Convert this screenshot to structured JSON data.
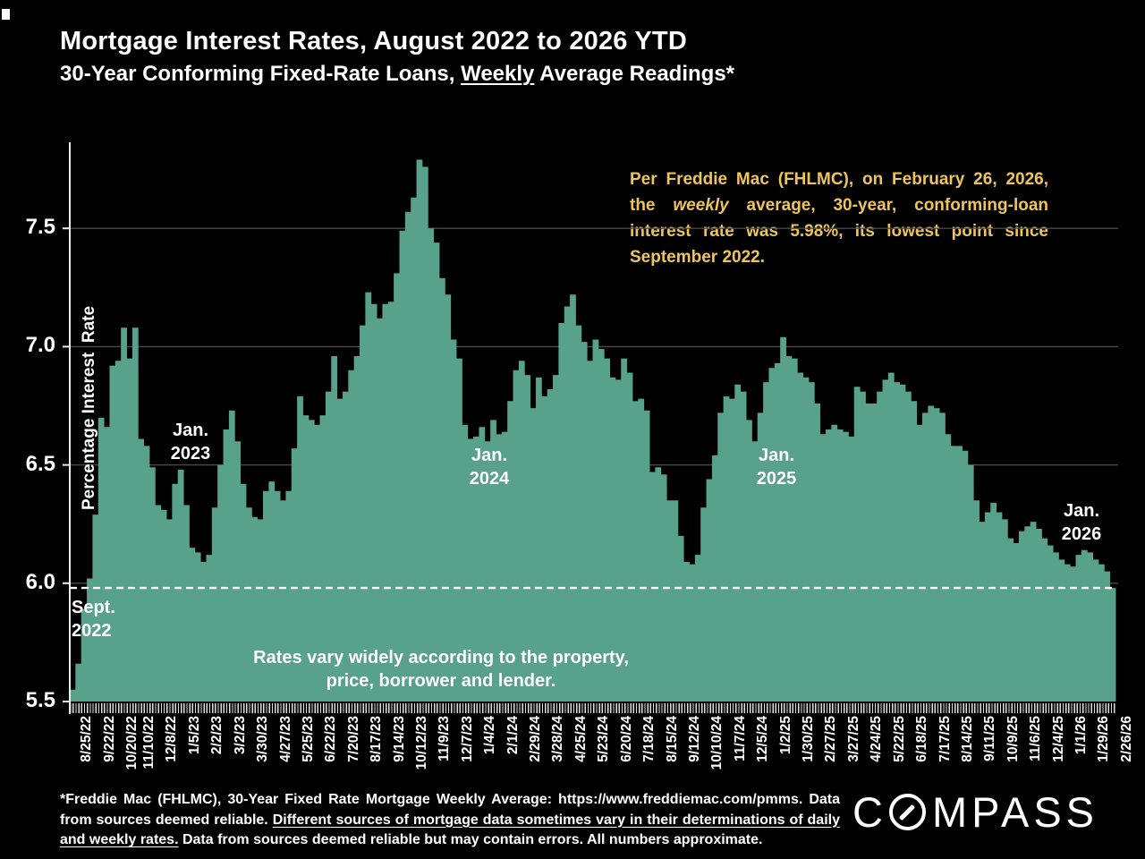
{
  "title": "Mortgage Interest Rates, August 2022 to 2026 YTD",
  "subtitle": {
    "pre": "30-Year Conforming Fixed-Rate Loans, ",
    "underlined": "Weekly",
    "post": " Average Readings*"
  },
  "annotation": {
    "pre": "Per Freddie Mac (FHLMC), on February 26, 2026, the ",
    "italic": "weekly",
    "post": " average, 30-year, conforming-loan interest rate was 5.98%, its lowest point since September 2022."
  },
  "chart_labels": {
    "sept_2022": "Sept.\n2022",
    "jan_2023": "Jan.\n2023",
    "jan_2024": "Jan.\n2024",
    "jan_2025": "Jan.\n2025",
    "jan_2026": "Jan.\n2026",
    "note": "Rates vary widely according to the property,\nprice, borrower and lender."
  },
  "footer": {
    "part1": "*Freddie Mac (FHLMC), 30-Year Fixed Rate Mortgage Weekly Average:  https://www.freddiemac.com/pmms. Data from sources deemed reliable. ",
    "underlined": "Different sources of mortgage data sometimes vary in their determinations of daily and weekly rates.",
    "part2": " Data from sources deemed reliable but may contain errors. All numbers approximate."
  },
  "logo": {
    "pre_o": "C",
    "post_o": "MPASS"
  },
  "colors": {
    "background": "#000000",
    "bar": "#58A18B",
    "annotation_text": "#EDC55C",
    "gridline": "#4A4A4A",
    "axis": "#EDEDED",
    "reference_line": "#FFFFFF"
  },
  "chart_data": {
    "type": "bar",
    "title": "Mortgage Interest Rates, August 2022 to 2026 YTD",
    "subtitle": "30-Year Conforming Fixed-Rate Loans, Weekly Average Readings*",
    "xlabel": "",
    "ylabel": "Percentage Interest  Rate",
    "ylim": [
      5.5,
      7.9
    ],
    "yticks": [
      5.5,
      6.0,
      6.5,
      7.0,
      7.5
    ],
    "grid": "horizontal",
    "legend": "none",
    "reference_line_value": 5.98,
    "x_tick_labels": [
      "8/25/22",
      "9/22/22",
      "10/20/22",
      "11/10/22",
      "12/8/22",
      "1/5/23",
      "2/2/23",
      "3/2/23",
      "3/30/23",
      "4/27/23",
      "5/25/23",
      "6/22/23",
      "7/20/23",
      "8/17/23",
      "9/14/23",
      "10/12/23",
      "11/9/23",
      "12/7/23",
      "1/4/24",
      "2/1/24",
      "2/29/24",
      "3/28/24",
      "4/25/24",
      "5/23/24",
      "6/20/24",
      "7/18/24",
      "8/15/24",
      "9/12/24",
      "10/10/24",
      "11/7/24",
      "12/5/24",
      "1/2/25",
      "1/30/25",
      "2/27/25",
      "3/27/25",
      "4/24/25",
      "5/22/25",
      "6/18/25",
      "7/17/25",
      "8/14/25",
      "9/11/25",
      "10/9/25",
      "11/6/25",
      "12/4/25",
      "1/1/26",
      "1/29/26",
      "2/26/26"
    ],
    "x_tick_week_indices": [
      0,
      4,
      8,
      11,
      15,
      19,
      23,
      27,
      31,
      35,
      39,
      43,
      47,
      51,
      55,
      59,
      63,
      67,
      71,
      75,
      79,
      83,
      87,
      91,
      95,
      99,
      103,
      107,
      111,
      115,
      119,
      123,
      127,
      131,
      135,
      139,
      143,
      147,
      151,
      155,
      159,
      163,
      167,
      171,
      175,
      179,
      183
    ],
    "weekly_values": [
      5.55,
      5.66,
      5.89,
      6.02,
      6.29,
      6.7,
      6.66,
      6.92,
      6.94,
      7.08,
      6.95,
      7.08,
      6.61,
      6.58,
      6.49,
      6.33,
      6.31,
      6.27,
      6.42,
      6.48,
      6.33,
      6.15,
      6.13,
      6.09,
      6.12,
      6.32,
      6.5,
      6.65,
      6.73,
      6.6,
      6.42,
      6.32,
      6.28,
      6.27,
      6.39,
      6.43,
      6.39,
      6.35,
      6.39,
      6.57,
      6.79,
      6.71,
      6.69,
      6.67,
      6.71,
      6.81,
      6.96,
      6.78,
      6.81,
      6.9,
      6.96,
      7.09,
      7.23,
      7.18,
      7.12,
      7.18,
      7.19,
      7.31,
      7.49,
      7.57,
      7.63,
      7.79,
      7.76,
      7.5,
      7.44,
      7.29,
      7.22,
      7.03,
      6.95,
      6.67,
      6.61,
      6.62,
      6.66,
      6.6,
      6.69,
      6.63,
      6.64,
      6.77,
      6.9,
      6.94,
      6.88,
      6.74,
      6.87,
      6.79,
      6.82,
      6.88,
      7.1,
      7.17,
      7.22,
      7.09,
      7.02,
      6.94,
      7.03,
      6.99,
      6.95,
      6.87,
      6.86,
      6.95,
      6.89,
      6.77,
      6.78,
      6.73,
      6.47,
      6.49,
      6.46,
      6.35,
      6.35,
      6.2,
      6.09,
      6.08,
      6.12,
      6.32,
      6.44,
      6.54,
      6.72,
      6.79,
      6.78,
      6.84,
      6.81,
      6.69,
      6.6,
      6.72,
      6.85,
      6.91,
      6.93,
      7.04,
      6.96,
      6.95,
      6.89,
      6.87,
      6.85,
      6.76,
      6.63,
      6.65,
      6.67,
      6.65,
      6.64,
      6.62,
      6.83,
      6.81,
      6.76,
      6.76,
      6.81,
      6.86,
      6.89,
      6.85,
      6.84,
      6.81,
      6.77,
      6.67,
      6.72,
      6.75,
      6.74,
      6.72,
      6.63,
      6.58,
      6.58,
      6.56,
      6.5,
      6.35,
      6.26,
      6.3,
      6.34,
      6.3,
      6.27,
      6.19,
      6.17,
      6.22,
      6.24,
      6.26,
      6.23,
      6.19,
      6.16,
      6.13,
      6.1,
      6.08,
      6.07,
      6.12,
      6.14,
      6.13,
      6.1,
      6.08,
      6.05,
      5.98
    ]
  }
}
